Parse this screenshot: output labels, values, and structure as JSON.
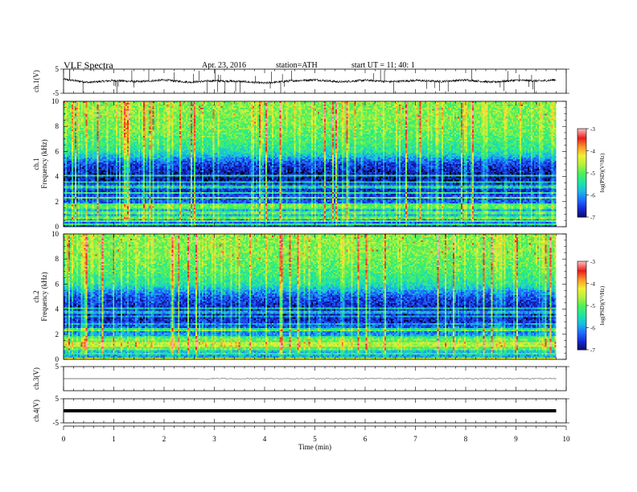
{
  "header": {
    "title": "VLF  Spectra",
    "date": "Apr. 23, 2016",
    "station": "station=ATH",
    "start": "start  UT  =    11: 40: 1"
  },
  "colors": {
    "colormap": [
      "#0a0a66",
      "#1428d2",
      "#1e6cff",
      "#19bce6",
      "#1ee6a0",
      "#4bf05a",
      "#b4f03c",
      "#f0f032",
      "#ff9628",
      "#e61e1e",
      "#ffb4b4"
    ]
  },
  "chart_data": [
    {
      "type": "line",
      "panel": "ch1-waveform",
      "ylabel": "ch.1(V)",
      "ylim": [
        -5,
        5
      ],
      "ytick_labels": [
        "5",
        "-5"
      ],
      "xlim": [
        0,
        10
      ],
      "x": [
        0,
        0.5,
        1,
        1.5,
        2,
        2.5,
        3,
        3.5,
        4,
        4.5,
        5,
        5.5,
        6,
        6.5,
        7,
        7.5,
        8,
        8.5,
        9,
        9.5,
        9.8
      ],
      "y": [
        0.8,
        -0.5,
        0.3,
        -0.2,
        0.5,
        -0.4,
        0.2,
        -0.1,
        -0.8,
        0.1,
        0.6,
        -0.3,
        0.4,
        -0.2,
        0.3,
        -0.1,
        0.5,
        -0.4,
        0.4,
        0.1,
        0.6
      ]
    },
    {
      "type": "heatmap",
      "panel": "ch1-spectrogram",
      "ylabel": "ch.1\nFrequency  (kHz)",
      "xlim": [
        0,
        9.8
      ],
      "ylim": [
        0,
        10
      ],
      "ytick_labels": [
        "0",
        "2",
        "4",
        "6",
        "8",
        "10"
      ],
      "colorbar": {
        "label": "log(PSD)(V²/Hz)",
        "range": [
          -7,
          -3
        ],
        "tick_labels": [
          "-3",
          "-4",
          "-5",
          "-6",
          "-7"
        ]
      },
      "freq_profile": [
        {
          "f_khz": 0.2,
          "log_psd": -6.3
        },
        {
          "f_khz": 1.0,
          "log_psd": -5.8
        },
        {
          "f_khz": 2.0,
          "log_psd": -6.3
        },
        {
          "f_khz": 3.0,
          "log_psd": -6.6
        },
        {
          "f_khz": 4.0,
          "log_psd": -6.8
        },
        {
          "f_khz": 5.0,
          "log_psd": -6.5
        },
        {
          "f_khz": 6.0,
          "log_psd": -5.4
        },
        {
          "f_khz": 7.0,
          "log_psd": -5.1
        },
        {
          "f_khz": 8.0,
          "log_psd": -4.9
        },
        {
          "f_khz": 9.0,
          "log_psd": -4.8
        },
        {
          "f_khz": 9.9,
          "log_psd": -4.8
        }
      ]
    },
    {
      "type": "heatmap",
      "panel": "ch2-spectrogram",
      "ylabel": "ch.2\nFrequency  (kHz)",
      "xlim": [
        0,
        9.8
      ],
      "ylim": [
        0,
        10
      ],
      "ytick_labels": [
        "0",
        "2",
        "4",
        "6",
        "8",
        "10"
      ],
      "colorbar": {
        "label": "log(PSD)(V²/Hz)",
        "range": [
          -7,
          -3
        ],
        "tick_labels": [
          "-3",
          "-4",
          "-5",
          "-6",
          "-7"
        ]
      },
      "freq_profile": [
        {
          "f_khz": 0.2,
          "log_psd": -5.9
        },
        {
          "f_khz": 1.0,
          "log_psd": -5.6
        },
        {
          "f_khz": 2.0,
          "log_psd": -6.0
        },
        {
          "f_khz": 3.0,
          "log_psd": -6.6
        },
        {
          "f_khz": 4.0,
          "log_psd": -6.7
        },
        {
          "f_khz": 5.0,
          "log_psd": -6.4
        },
        {
          "f_khz": 6.0,
          "log_psd": -5.4
        },
        {
          "f_khz": 7.0,
          "log_psd": -5.1
        },
        {
          "f_khz": 8.0,
          "log_psd": -4.9
        },
        {
          "f_khz": 9.0,
          "log_psd": -4.8
        },
        {
          "f_khz": 9.9,
          "log_psd": -4.8
        }
      ]
    },
    {
      "type": "line",
      "panel": "ch3-waveform",
      "ylabel": "ch.3(V)",
      "ylim": [
        -5,
        5
      ],
      "ytick_labels": [
        "5"
      ],
      "xlim": [
        0,
        10
      ],
      "x": [
        0,
        2.7,
        9.8
      ],
      "y": [
        0,
        0,
        0
      ]
    },
    {
      "type": "line",
      "panel": "ch4-waveform",
      "ylabel": "ch.4(V)",
      "ylim": [
        -5,
        5
      ],
      "ytick_labels": [
        "5",
        "-5"
      ],
      "xlim": [
        0,
        10
      ],
      "x": [
        0,
        9.8
      ],
      "y": [
        0,
        0
      ]
    }
  ],
  "xaxis": {
    "label": "Time  (min)",
    "ticks": [
      0,
      1,
      2,
      3,
      4,
      5,
      6,
      7,
      8,
      9,
      10
    ],
    "tick_labels": [
      "0",
      "1",
      "2",
      "3",
      "4",
      "5",
      "6",
      "7",
      "8",
      "9",
      "10"
    ]
  }
}
